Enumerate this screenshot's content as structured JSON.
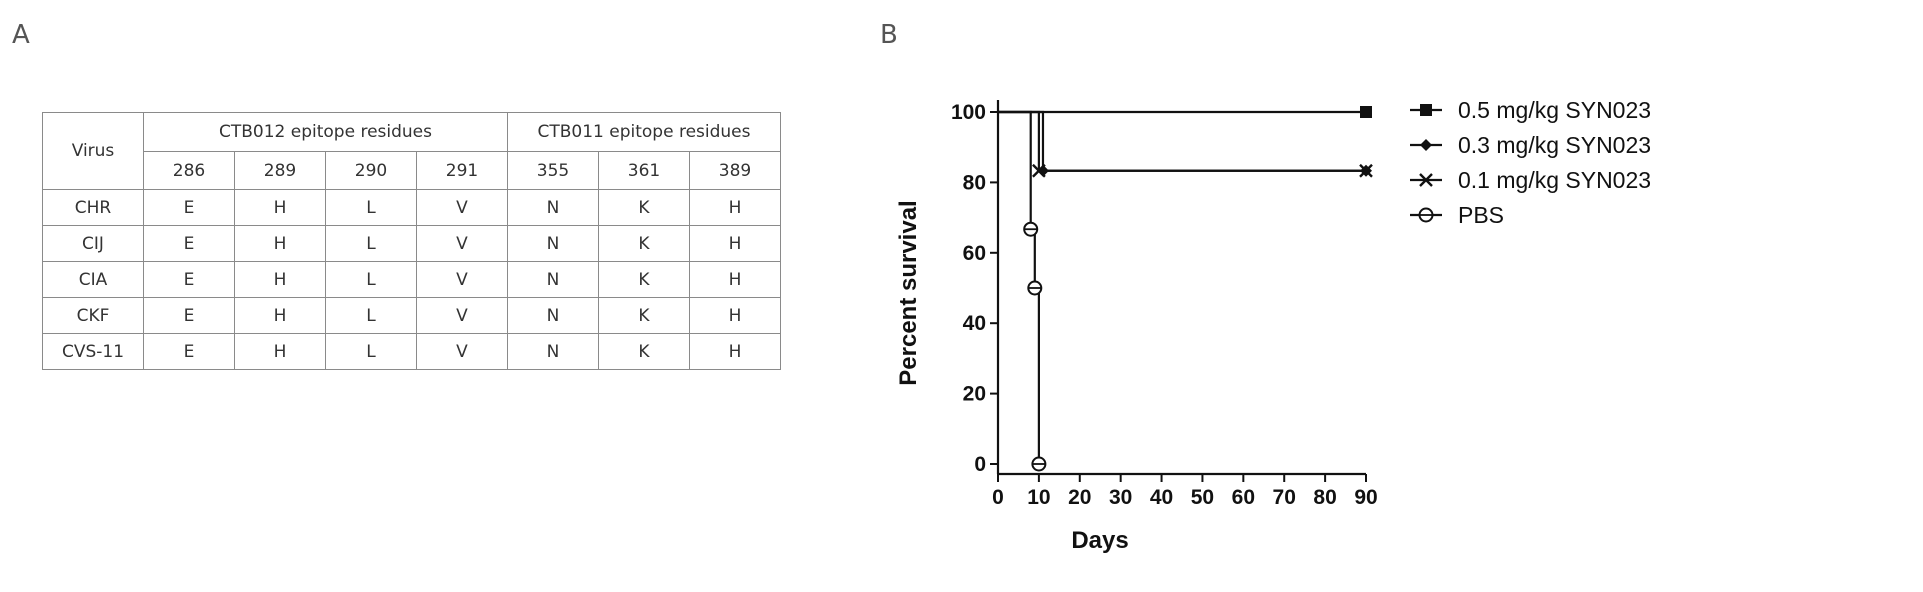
{
  "panels": {
    "a": "A",
    "b": "B"
  },
  "table": {
    "virus_header": "Virus",
    "groups": [
      {
        "label": "CTB012 epitope residues",
        "columns": [
          "286",
          "289",
          "290",
          "291"
        ]
      },
      {
        "label": "CTB011 epitope residues",
        "columns": [
          "355",
          "361",
          "389"
        ]
      }
    ],
    "rows": [
      {
        "virus": "CHR",
        "cells": [
          "E",
          "H",
          "L",
          "V",
          "N",
          "K",
          "H"
        ]
      },
      {
        "virus": "CIJ",
        "cells": [
          "E",
          "H",
          "L",
          "V",
          "N",
          "K",
          "H"
        ]
      },
      {
        "virus": "CIA",
        "cells": [
          "E",
          "H",
          "L",
          "V",
          "N",
          "K",
          "H"
        ]
      },
      {
        "virus": "CKF",
        "cells": [
          "E",
          "H",
          "L",
          "V",
          "N",
          "K",
          "H"
        ]
      },
      {
        "virus": "CVS-11",
        "cells": [
          "E",
          "H",
          "L",
          "V",
          "N",
          "K",
          "H"
        ]
      }
    ]
  },
  "chart_data": {
    "type": "line",
    "subtype": "kaplan-meier survival",
    "xlabel": "Days",
    "ylabel": "Percent survival",
    "xlim": [
      0,
      90
    ],
    "ylim": [
      0,
      100
    ],
    "xticks": [
      0,
      10,
      20,
      30,
      40,
      50,
      60,
      70,
      80,
      90
    ],
    "yticks": [
      0,
      20,
      40,
      60,
      80,
      100
    ],
    "grid": false,
    "legend_position": "right",
    "series": [
      {
        "name": "0.5 mg/kg SYN023",
        "marker": "filled-square",
        "color": "#111111",
        "steps": [
          [
            0,
            100
          ],
          [
            90,
            100
          ]
        ],
        "markers": [
          [
            90,
            100
          ]
        ]
      },
      {
        "name": "0.3 mg/kg SYN023",
        "marker": "filled-diamond",
        "color": "#111111",
        "steps": [
          [
            0,
            100
          ],
          [
            11,
            100
          ],
          [
            11,
            83.3
          ],
          [
            90,
            83.3
          ]
        ],
        "markers": [
          [
            11,
            83.3
          ],
          [
            90,
            83.3
          ]
        ]
      },
      {
        "name": "0.1 mg/kg SYN023",
        "marker": "x",
        "color": "#111111",
        "steps": [
          [
            0,
            100
          ],
          [
            10,
            100
          ],
          [
            10,
            83.3
          ],
          [
            90,
            83.3
          ]
        ],
        "markers": [
          [
            10,
            83.3
          ],
          [
            90,
            83.3
          ]
        ]
      },
      {
        "name": "PBS",
        "marker": "open-circle-dot",
        "color": "#111111",
        "steps": [
          [
            0,
            100
          ],
          [
            8,
            100
          ],
          [
            8,
            66.7
          ],
          [
            9,
            66.7
          ],
          [
            9,
            50
          ],
          [
            10,
            50
          ],
          [
            10,
            0
          ]
        ],
        "markers": [
          [
            8,
            66.7
          ],
          [
            9,
            50
          ],
          [
            10,
            0
          ]
        ]
      }
    ]
  }
}
